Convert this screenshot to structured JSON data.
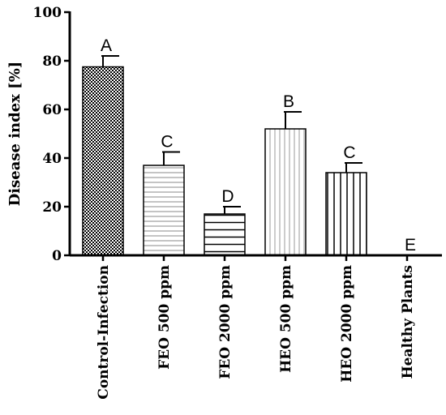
{
  "chart_data": {
    "type": "bar",
    "ylabel": "Disease index [%]",
    "xlabel": "",
    "ylim": [
      0,
      100
    ],
    "yticks": [
      0,
      20,
      40,
      60,
      80,
      100
    ],
    "grid": false,
    "categories": [
      "Control-Infection",
      "FEO 500 ppm",
      "FEO 2000 ppm",
      "HEO 500 ppm",
      "HEO 2000 ppm",
      "Healthy Plants"
    ],
    "values": [
      77.5,
      37,
      17,
      52,
      34,
      0
    ],
    "errors": [
      4.5,
      5.5,
      3,
      7,
      4,
      0
    ],
    "letters": [
      "A",
      "C",
      "D",
      "B",
      "C",
      "E"
    ],
    "patterns": [
      "checker",
      "hlines-fine",
      "hlines-wide",
      "vlines-fine",
      "vlines-wide",
      "none"
    ]
  }
}
